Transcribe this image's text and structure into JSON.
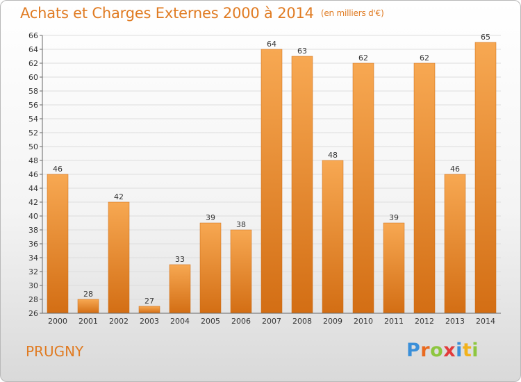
{
  "title": "Achats et Charges Externes 2000 à 2014",
  "subtitle": "(en milliers d'€)",
  "commune": "PRUGNY",
  "logo": {
    "letters": [
      "P",
      "r",
      "o",
      "x",
      "i",
      "t",
      "i"
    ],
    "colors": [
      "#3a8fd9",
      "#e96a1f",
      "#8dc63f",
      "#e23b3b",
      "#3a8fd9",
      "#f2b21b",
      "#8dc63f"
    ]
  },
  "colors": {
    "accent": "#e07b22",
    "bar_light": "#f7a852",
    "bar_dark": "#d36e14",
    "grid": "#dddddd"
  },
  "chart_data": {
    "type": "bar",
    "title": "Achats et Charges Externes 2000 à 2014",
    "subtitle": "(en milliers d'€)",
    "categories": [
      "2000",
      "2001",
      "2002",
      "2003",
      "2004",
      "2005",
      "2006",
      "2007",
      "2008",
      "2009",
      "2010",
      "2011",
      "2012",
      "2013",
      "2014"
    ],
    "values": [
      46,
      28,
      42,
      27,
      33,
      39,
      38,
      64,
      63,
      48,
      62,
      39,
      62,
      46,
      65
    ],
    "ylim": [
      26,
      66
    ],
    "yticks": [
      26,
      28,
      30,
      32,
      34,
      36,
      38,
      40,
      42,
      44,
      46,
      48,
      50,
      52,
      54,
      56,
      58,
      60,
      62,
      64,
      66
    ],
    "grid": true,
    "xlabel": "",
    "ylabel": ""
  }
}
